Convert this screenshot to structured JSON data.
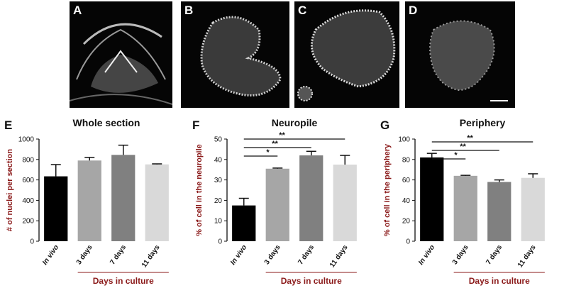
{
  "images": [
    {
      "label": "A"
    },
    {
      "label": "B"
    },
    {
      "label": "C"
    },
    {
      "label": "D"
    }
  ],
  "chart_data": [
    {
      "panel": "E",
      "type": "bar",
      "title": "Whole section",
      "ylabel": "# of nuclei per section",
      "xlabel": "Days in culture",
      "categories": [
        "In vivo",
        "3 days",
        "7 days",
        "11 days"
      ],
      "values": [
        635,
        790,
        845,
        752
      ],
      "errors": [
        115,
        30,
        95,
        5
      ],
      "colors": [
        "#000000",
        "#a6a6a6",
        "#808080",
        "#d9d9d9"
      ],
      "ylim": [
        0,
        1000
      ],
      "yticks": [
        0,
        200,
        400,
        600,
        800,
        1000
      ],
      "significance": []
    },
    {
      "panel": "F",
      "type": "bar",
      "title": "Neuropile",
      "ylabel": "% of cell in the neuropile",
      "xlabel": "Days in culture",
      "categories": [
        "In vivo",
        "3 days",
        "7 days",
        "11 days"
      ],
      "values": [
        17.5,
        35.5,
        42,
        37.5
      ],
      "errors": [
        3.5,
        0.3,
        2,
        4.5
      ],
      "colors": [
        "#000000",
        "#a6a6a6",
        "#808080",
        "#d9d9d9"
      ],
      "ylim": [
        0,
        50
      ],
      "yticks": [
        0,
        10,
        20,
        30,
        40,
        50
      ],
      "significance": [
        {
          "from": 0,
          "to": 1,
          "label": "*"
        },
        {
          "from": 0,
          "to": 2,
          "label": "**"
        },
        {
          "from": 0,
          "to": 3,
          "label": "**"
        }
      ]
    },
    {
      "panel": "G",
      "type": "bar",
      "title": "Periphery",
      "ylabel": "% of cell in the periphery",
      "xlabel": "Days in culture",
      "categories": [
        "In vivo",
        "3 days",
        "7 days",
        "11 days"
      ],
      "values": [
        82,
        64,
        58,
        62
      ],
      "errors": [
        4,
        0.5,
        2,
        4
      ],
      "colors": [
        "#000000",
        "#a6a6a6",
        "#808080",
        "#d9d9d9"
      ],
      "ylim": [
        0,
        100
      ],
      "yticks": [
        0,
        20,
        40,
        60,
        80,
        100
      ],
      "significance": [
        {
          "from": 0,
          "to": 1,
          "label": "*"
        },
        {
          "from": 0,
          "to": 2,
          "label": "**"
        },
        {
          "from": 0,
          "to": 3,
          "label": "**"
        }
      ]
    }
  ]
}
